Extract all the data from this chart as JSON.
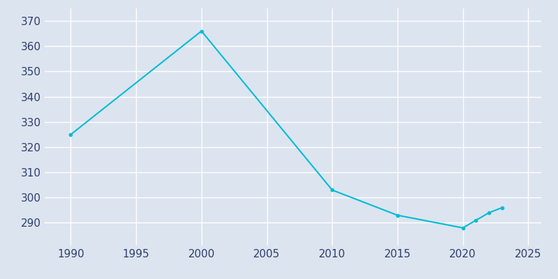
{
  "years": [
    1990,
    2000,
    2010,
    2015,
    2020,
    2021,
    2022,
    2023
  ],
  "population": [
    325,
    366,
    303,
    293,
    288,
    291,
    294,
    296
  ],
  "line_color": "#00BCD4",
  "bg_color": "#DCE4EF",
  "plot_bg_color": "#DCE4EF",
  "grid_color": "#FFFFFF",
  "axis_label_color": "#2E3E6E",
  "xlim": [
    1988,
    2026
  ],
  "ylim": [
    281,
    375
  ],
  "xticks": [
    1990,
    1995,
    2000,
    2005,
    2010,
    2015,
    2020,
    2025
  ],
  "yticks": [
    290,
    300,
    310,
    320,
    330,
    340,
    350,
    360,
    370
  ],
  "linewidth": 1.5,
  "marker": "o",
  "markersize": 3,
  "tick_fontsize": 11
}
